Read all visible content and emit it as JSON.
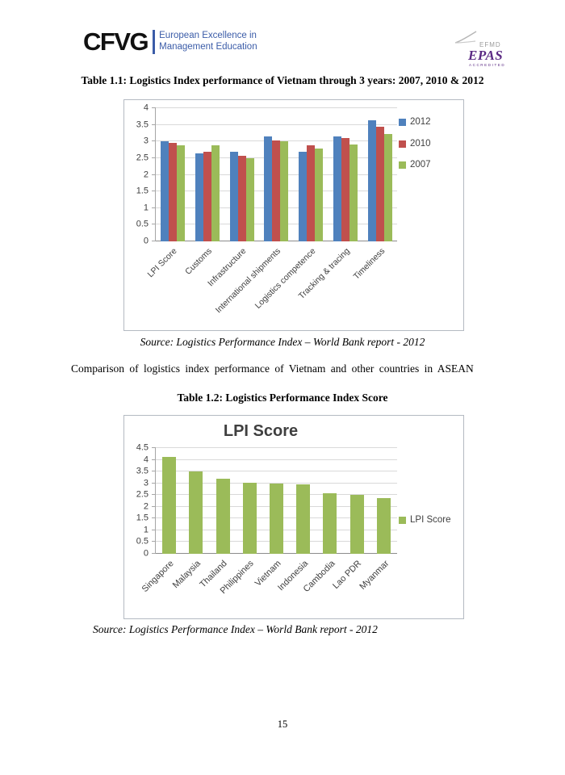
{
  "header": {
    "cfvg": {
      "wordmark": "CFVG",
      "tagline_line1": "European Excellence in",
      "tagline_line2": "Management Education",
      "brand_blue": "#3b5ca8"
    },
    "accreditation": {
      "efmd": "EFMD",
      "epas": "EPAS",
      "accredited": "ACCREDITED",
      "purple": "#5b2a84"
    }
  },
  "content": {
    "table1_title": "Table 1.1: Logistics Index performance of Vietnam through 3 years: 2007, 2010 & 2012",
    "source1": "Source: Logistics Performance Index – World Bank report - 2012",
    "paragraph": "Comparison of logistics index performance of Vietnam and other countries in ASEAN",
    "table2_title": "Table 1.2: Logistics Performance Index Score",
    "source2": "Source: Logistics Performance Index – World Bank report - 2012"
  },
  "footer": {
    "page_number": "15"
  },
  "colors": {
    "series_2012_blue": "#4F81BD",
    "series_2010_red": "#C0504D",
    "series_2007_green": "#9BBB59",
    "axis_text": "#3f3f3f",
    "gridline": "#d9d9d9"
  },
  "chart_data": [
    {
      "type": "bar",
      "title": "",
      "categories": [
        "LPI Score",
        "Customs",
        "Infrastructure",
        "International shipments",
        "Logistics competence",
        "Tracking & tracing",
        "Timeliness"
      ],
      "series": [
        {
          "name": "2012",
          "color": "#4F81BD",
          "values": [
            3.0,
            2.65,
            2.68,
            3.14,
            2.68,
            3.16,
            3.64
          ]
        },
        {
          "name": "2010",
          "color": "#C0504D",
          "values": [
            2.96,
            2.68,
            2.56,
            3.04,
            2.89,
            3.1,
            3.44
          ]
        },
        {
          "name": "2007",
          "color": "#9BBB59",
          "values": [
            2.89,
            2.89,
            2.5,
            3.0,
            2.8,
            2.9,
            3.22
          ]
        }
      ],
      "xlabel": "",
      "ylabel": "",
      "ylim": [
        0,
        4
      ],
      "ytick_step": 0.5,
      "grid": true,
      "legend_position": "right"
    },
    {
      "type": "bar",
      "title": "LPI Score",
      "categories": [
        "Singapore",
        "Malaysia",
        "Thailand",
        "Philippines",
        "Vietnam",
        "Indonesia",
        "Cambodia",
        "Lao PDR",
        "Myanmar"
      ],
      "series": [
        {
          "name": "LPI Score",
          "color": "#9BBB59",
          "values": [
            4.13,
            3.49,
            3.18,
            3.02,
            3.0,
            2.94,
            2.56,
            2.5,
            2.37
          ]
        }
      ],
      "xlabel": "",
      "ylabel": "",
      "ylim": [
        0,
        4.5
      ],
      "ytick_step": 0.5,
      "grid": true,
      "legend_position": "right"
    }
  ]
}
